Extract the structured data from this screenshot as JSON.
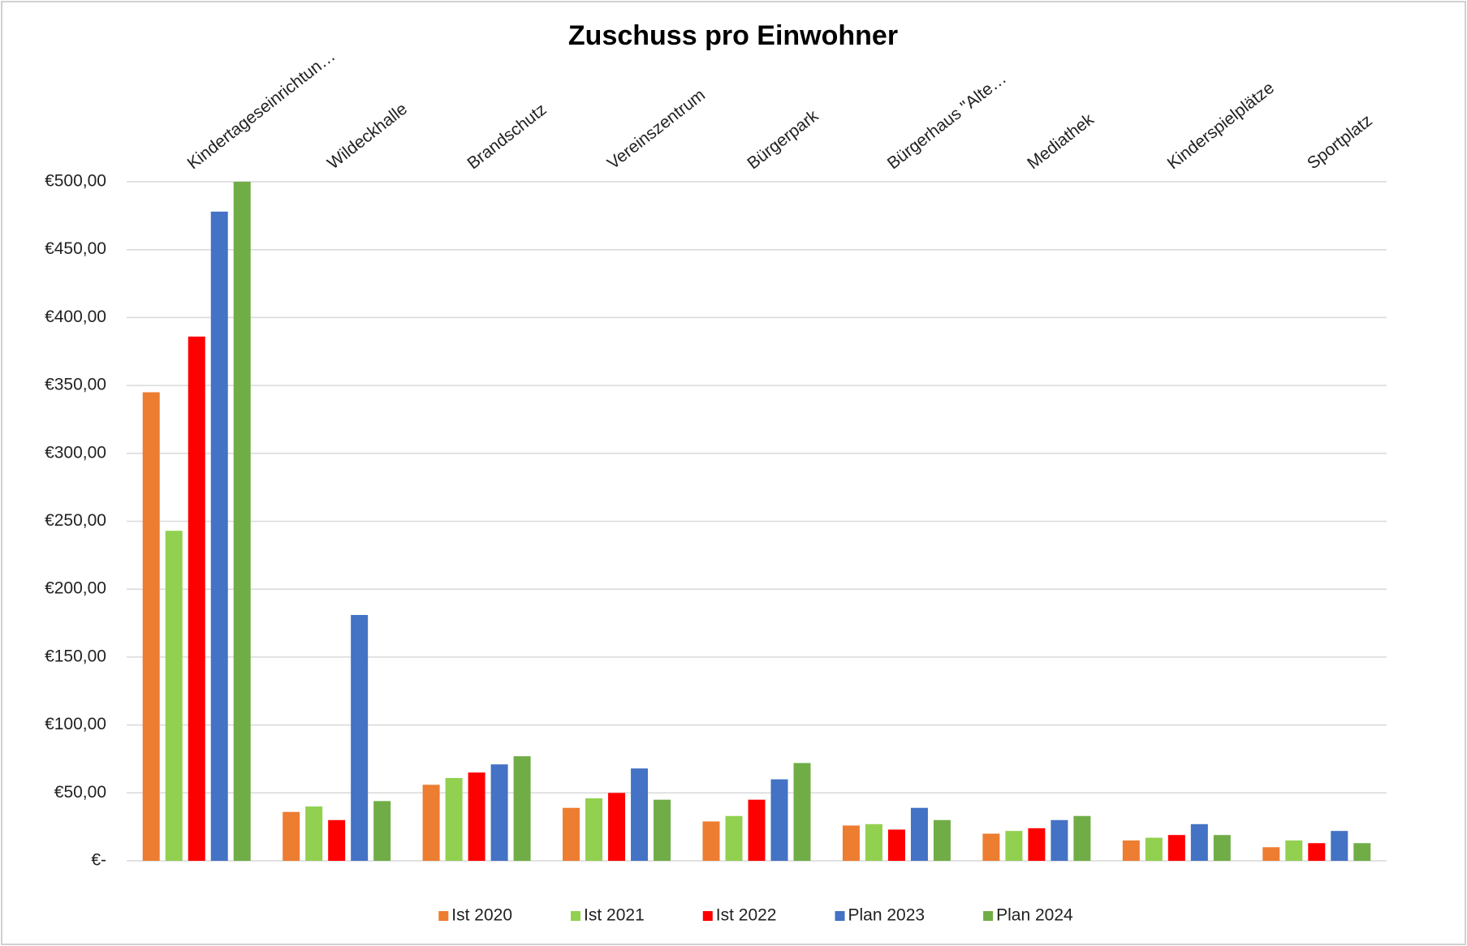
{
  "chart_data": {
    "type": "bar",
    "title": "Zuschuss pro Einwohner",
    "categories": [
      "Kindertageseinrichtun…",
      "Wildeckhalle",
      "Brandschutz",
      "Vereinszentrum",
      "Bürgerpark",
      "Bürgerhaus \"Alte…",
      "Mediathek",
      "Kinderspielplätze",
      "Sportplatz"
    ],
    "series": [
      {
        "name": "Ist 2020",
        "color": "#ed7d31",
        "values": [
          345,
          36,
          56,
          39,
          29,
          26,
          20,
          15,
          10
        ]
      },
      {
        "name": "Ist 2021",
        "color": "#92d050",
        "values": [
          243,
          40,
          61,
          46,
          33,
          27,
          22,
          17,
          15
        ]
      },
      {
        "name": "Ist 2022",
        "color": "#ff0000",
        "values": [
          386,
          30,
          65,
          50,
          45,
          23,
          24,
          19,
          13
        ]
      },
      {
        "name": "Plan 2023",
        "color": "#4472c4",
        "values": [
          478,
          181,
          71,
          68,
          60,
          39,
          30,
          27,
          22
        ]
      },
      {
        "name": "Plan 2024",
        "color": "#70ad47",
        "values": [
          500,
          44,
          77,
          45,
          72,
          30,
          33,
          19,
          13
        ]
      }
    ],
    "ylim": [
      0,
      500
    ],
    "yticks": [
      {
        "value": 0,
        "label": "€-"
      },
      {
        "value": 50,
        "label": "€50,00"
      },
      {
        "value": 100,
        "label": "€100,00"
      },
      {
        "value": 150,
        "label": "€150,00"
      },
      {
        "value": 200,
        "label": "€200,00"
      },
      {
        "value": 250,
        "label": "€250,00"
      },
      {
        "value": 300,
        "label": "€300,00"
      },
      {
        "value": 350,
        "label": "€350,00"
      },
      {
        "value": 400,
        "label": "€400,00"
      },
      {
        "value": 450,
        "label": "€450,00"
      },
      {
        "value": 500,
        "label": "€500,00"
      }
    ],
    "grid": true,
    "legend": "bottom"
  }
}
